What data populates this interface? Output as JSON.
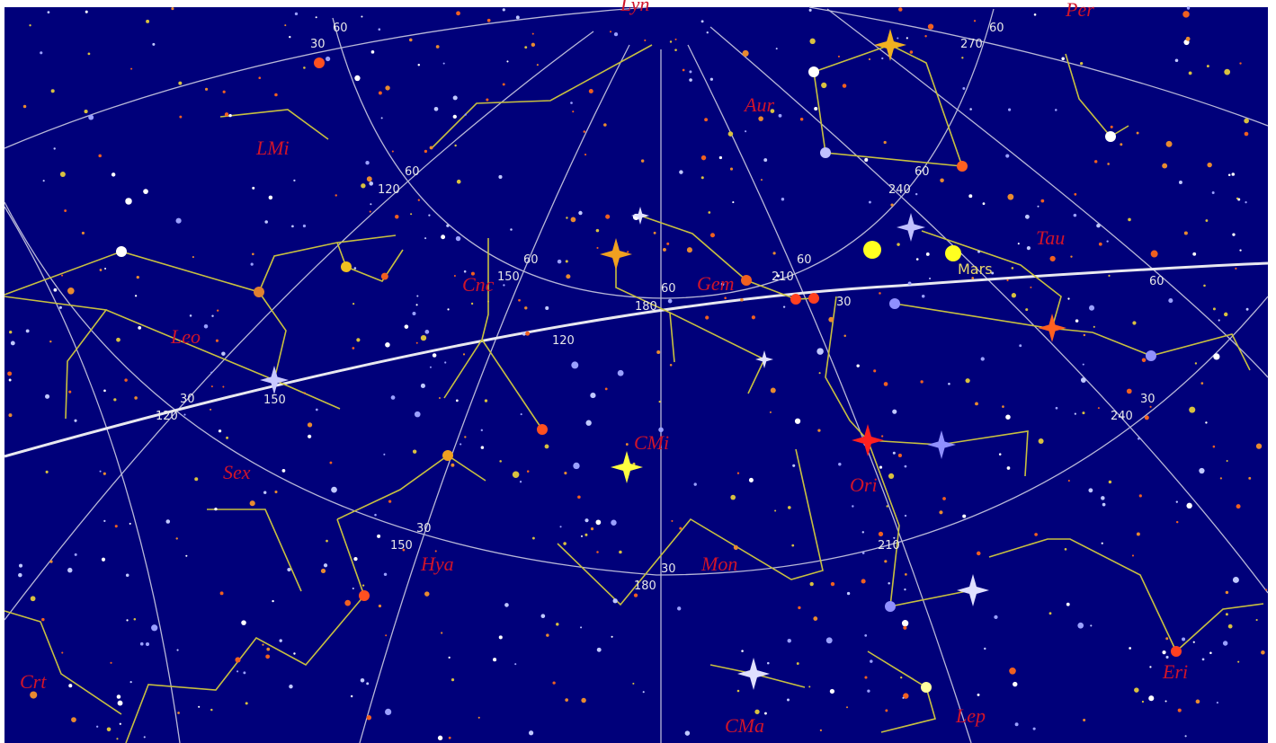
{
  "constellations": [
    "Lyn",
    "Per",
    "LMi",
    "Aur",
    "Tau",
    "Leo",
    "Cnc",
    "Gem",
    "CMi",
    "Sex",
    "Ori",
    "Hya",
    "Mon",
    "Crt",
    "CMa",
    "Lep",
    "Eri"
  ],
  "grid_labels": [
    "60",
    "30",
    "60",
    "270",
    "60",
    "120",
    "60",
    "240",
    "60",
    "150",
    "60",
    "210",
    "60",
    "180",
    "30",
    "120",
    "60",
    "30",
    "120",
    "150",
    "30",
    "240",
    "30",
    "150",
    "30",
    "180",
    "210"
  ],
  "planets": [
    {
      "label": "Mars"
    }
  ]
}
